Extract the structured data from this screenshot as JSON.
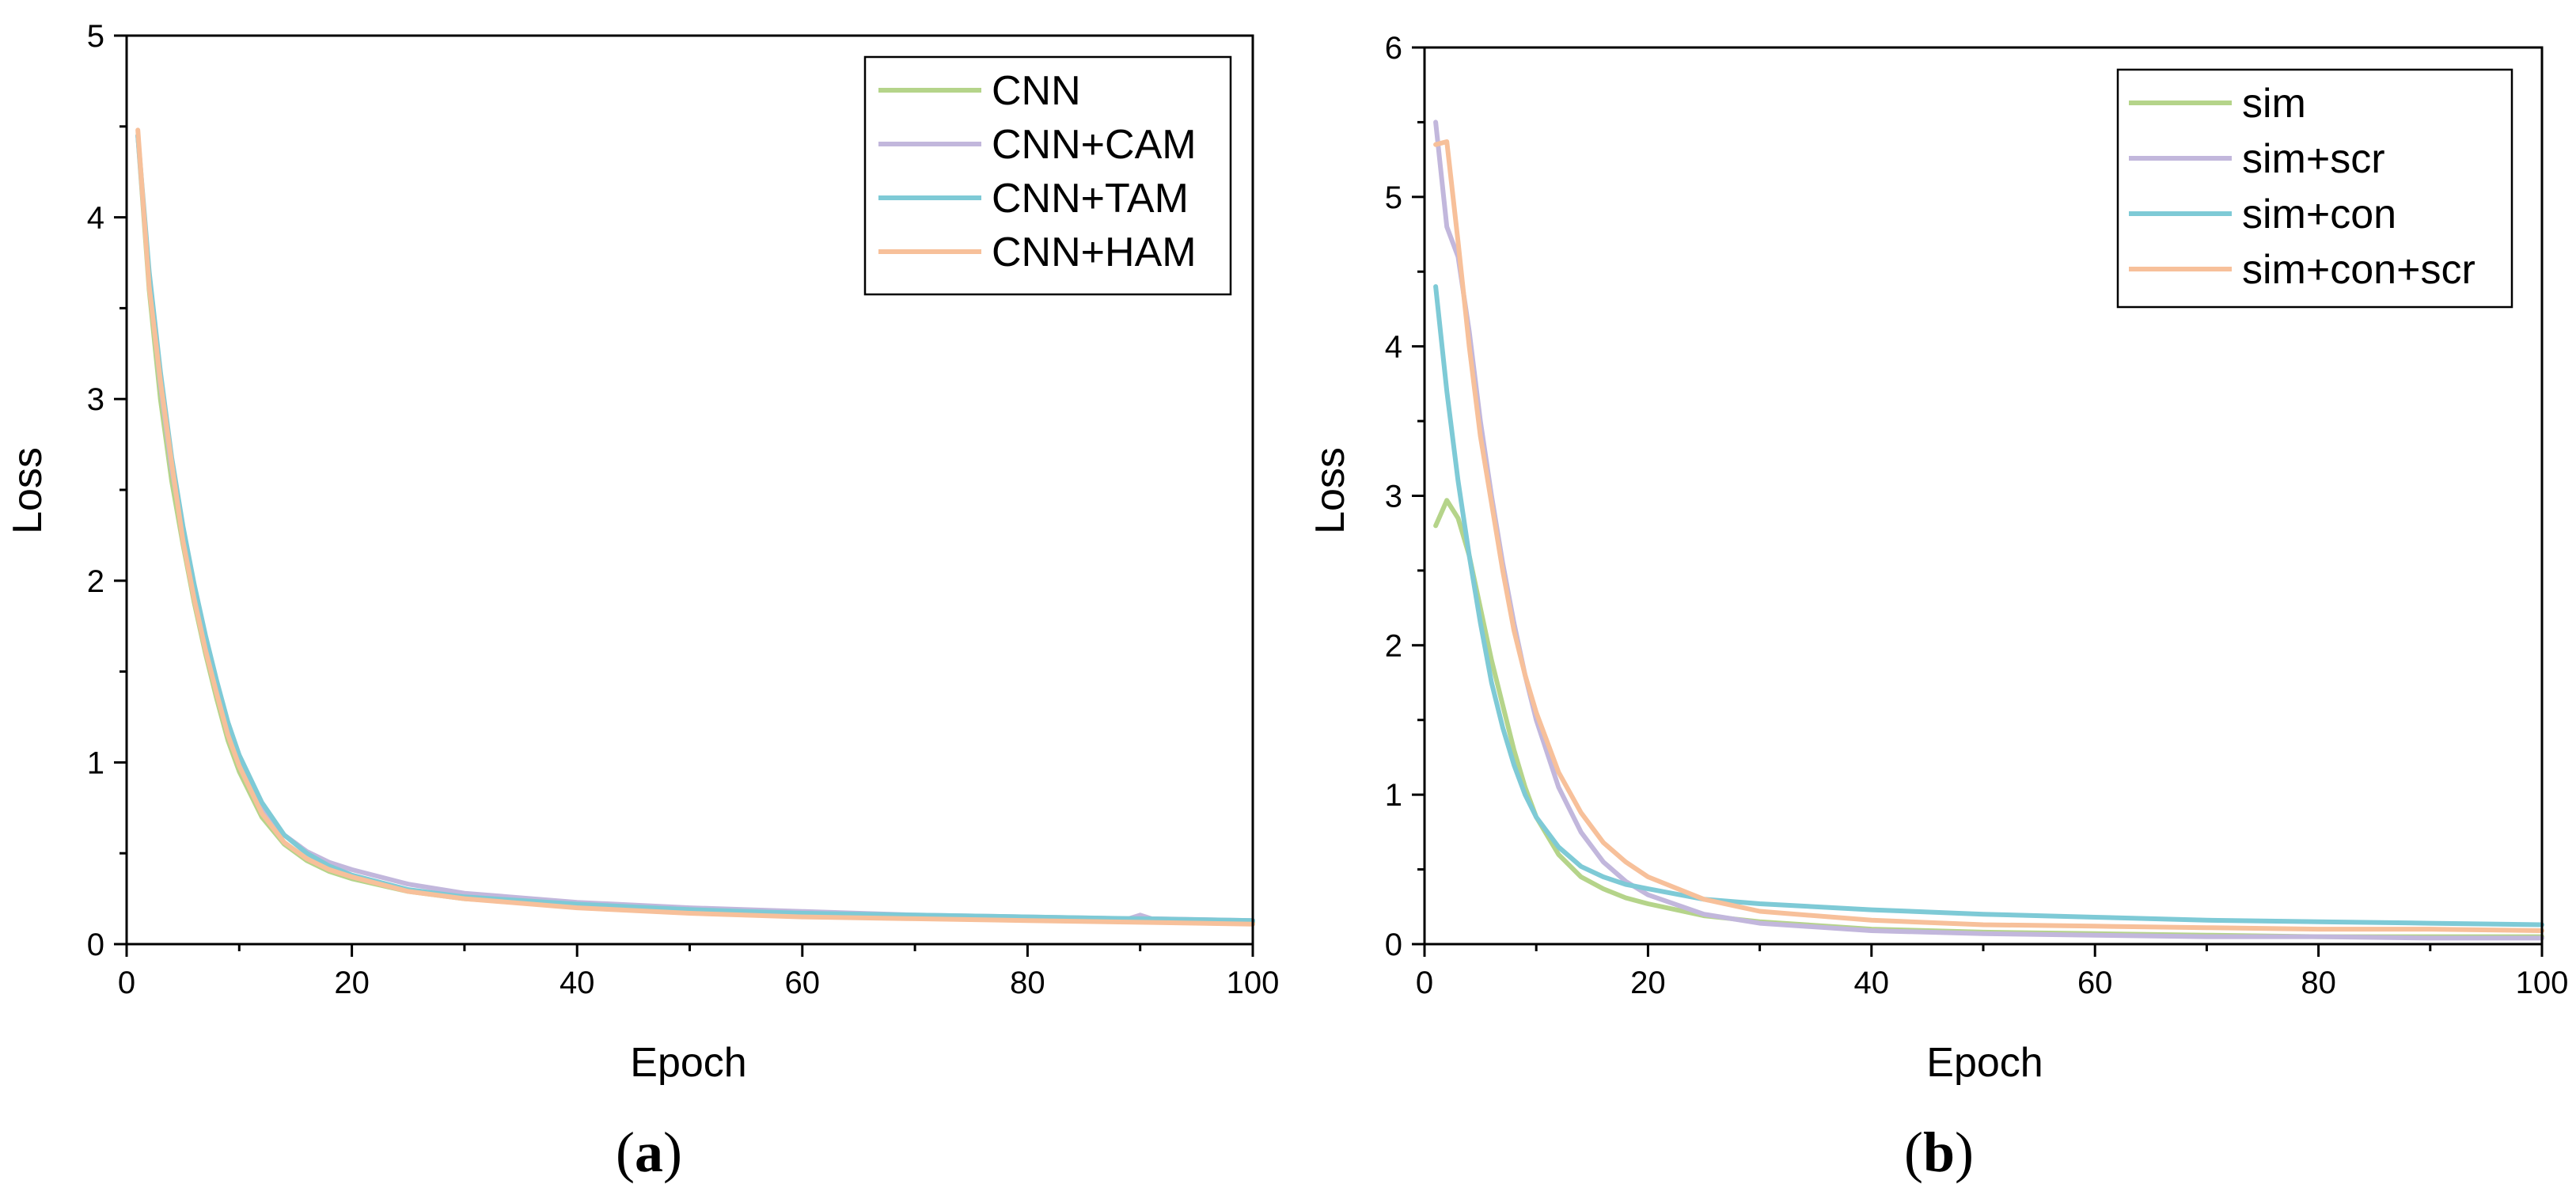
{
  "chart_data": [
    {
      "type": "line",
      "caption": "(a)",
      "caption_parts": [
        "(",
        "a",
        ")"
      ],
      "xlabel": "Epoch",
      "ylabel": "Loss",
      "xlim": [
        0,
        100
      ],
      "ylim": [
        0,
        5
      ],
      "xticks": [
        0,
        20,
        40,
        60,
        80,
        100
      ],
      "yticks": [
        0,
        1,
        2,
        3,
        4,
        5
      ],
      "grid": false,
      "legend_position": "top-right",
      "series": [
        {
          "name": "CNN",
          "color": "#b5d48a",
          "x": [
            1,
            2,
            3,
            4,
            5,
            6,
            7,
            8,
            9,
            10,
            12,
            14,
            16,
            18,
            20,
            25,
            30,
            40,
            50,
            60,
            70,
            80,
            90,
            100
          ],
          "y": [
            4.45,
            3.6,
            3.0,
            2.55,
            2.2,
            1.88,
            1.6,
            1.35,
            1.12,
            0.95,
            0.7,
            0.55,
            0.46,
            0.4,
            0.36,
            0.29,
            0.25,
            0.21,
            0.18,
            0.16,
            0.15,
            0.14,
            0.13,
            0.12
          ]
        },
        {
          "name": "CNN+CAM",
          "color": "#c2b7dc",
          "x": [
            1,
            2,
            3,
            4,
            5,
            6,
            7,
            8,
            9,
            10,
            12,
            14,
            16,
            18,
            20,
            25,
            30,
            40,
            50,
            60,
            70,
            80,
            89,
            90,
            91,
            100
          ],
          "y": [
            4.45,
            3.65,
            3.08,
            2.62,
            2.26,
            1.95,
            1.68,
            1.42,
            1.2,
            1.02,
            0.76,
            0.6,
            0.51,
            0.45,
            0.41,
            0.33,
            0.28,
            0.23,
            0.2,
            0.18,
            0.16,
            0.15,
            0.14,
            0.16,
            0.14,
            0.13
          ]
        },
        {
          "name": "CNN+TAM",
          "color": "#7ecad6",
          "x": [
            1,
            2,
            3,
            4,
            5,
            6,
            7,
            8,
            9,
            10,
            12,
            14,
            16,
            18,
            20,
            25,
            30,
            40,
            50,
            60,
            70,
            80,
            90,
            100
          ],
          "y": [
            4.45,
            3.7,
            3.15,
            2.68,
            2.3,
            1.98,
            1.7,
            1.45,
            1.22,
            1.04,
            0.78,
            0.6,
            0.5,
            0.43,
            0.38,
            0.3,
            0.26,
            0.22,
            0.19,
            0.17,
            0.16,
            0.15,
            0.14,
            0.13
          ]
        },
        {
          "name": "CNN+HAM",
          "color": "#f7c09a",
          "x": [
            1,
            2,
            3,
            4,
            5,
            6,
            7,
            8,
            9,
            10,
            12,
            14,
            16,
            18,
            20,
            25,
            30,
            40,
            50,
            60,
            70,
            80,
            90,
            100
          ],
          "y": [
            4.48,
            3.62,
            3.1,
            2.65,
            2.22,
            1.9,
            1.62,
            1.38,
            1.15,
            0.98,
            0.72,
            0.56,
            0.47,
            0.41,
            0.37,
            0.29,
            0.25,
            0.2,
            0.17,
            0.15,
            0.14,
            0.13,
            0.12,
            0.11
          ]
        }
      ]
    },
    {
      "type": "line",
      "caption": "(b)",
      "caption_parts": [
        "(",
        "b",
        ")"
      ],
      "xlabel": "Epoch",
      "ylabel": "Loss",
      "xlim": [
        0,
        100
      ],
      "ylim": [
        0,
        6
      ],
      "xticks": [
        0,
        20,
        40,
        60,
        80,
        100
      ],
      "yticks": [
        0,
        1,
        2,
        3,
        4,
        5,
        6
      ],
      "grid": false,
      "legend_position": "top-right",
      "series": [
        {
          "name": "sim",
          "color": "#b5d48a",
          "x": [
            1,
            2,
            3,
            4,
            5,
            6,
            7,
            8,
            9,
            10,
            12,
            14,
            16,
            18,
            20,
            25,
            30,
            40,
            50,
            60,
            70,
            80,
            90,
            100
          ],
          "y": [
            2.8,
            2.97,
            2.85,
            2.6,
            2.25,
            1.9,
            1.6,
            1.3,
            1.05,
            0.85,
            0.6,
            0.45,
            0.37,
            0.31,
            0.27,
            0.19,
            0.15,
            0.1,
            0.08,
            0.07,
            0.06,
            0.05,
            0.05,
            0.05
          ]
        },
        {
          "name": "sim+scr",
          "color": "#c2b7dc",
          "x": [
            1,
            2,
            3,
            4,
            5,
            6,
            7,
            8,
            9,
            10,
            12,
            14,
            16,
            18,
            20,
            25,
            30,
            40,
            50,
            60,
            70,
            80,
            90,
            100
          ],
          "y": [
            5.5,
            4.8,
            4.6,
            4.1,
            3.5,
            3.0,
            2.55,
            2.15,
            1.8,
            1.5,
            1.05,
            0.75,
            0.55,
            0.42,
            0.33,
            0.2,
            0.14,
            0.09,
            0.07,
            0.06,
            0.05,
            0.05,
            0.04,
            0.04
          ]
        },
        {
          "name": "sim+con",
          "color": "#7ecad6",
          "x": [
            1,
            2,
            3,
            4,
            5,
            6,
            7,
            8,
            9,
            10,
            12,
            14,
            16,
            18,
            20,
            25,
            30,
            40,
            50,
            60,
            70,
            80,
            90,
            100
          ],
          "y": [
            4.4,
            3.7,
            3.1,
            2.6,
            2.15,
            1.75,
            1.45,
            1.2,
            1.0,
            0.85,
            0.65,
            0.52,
            0.45,
            0.4,
            0.37,
            0.3,
            0.27,
            0.23,
            0.2,
            0.18,
            0.16,
            0.15,
            0.14,
            0.13
          ]
        },
        {
          "name": "sim+con+scr",
          "color": "#f7c09a",
          "x": [
            1,
            2,
            3,
            4,
            5,
            6,
            7,
            8,
            9,
            10,
            12,
            14,
            16,
            18,
            20,
            25,
            30,
            40,
            50,
            60,
            70,
            80,
            90,
            100
          ],
          "y": [
            5.35,
            5.37,
            4.7,
            4.0,
            3.4,
            2.95,
            2.5,
            2.1,
            1.8,
            1.55,
            1.15,
            0.88,
            0.68,
            0.55,
            0.45,
            0.3,
            0.22,
            0.16,
            0.13,
            0.12,
            0.11,
            0.1,
            0.1,
            0.09
          ]
        }
      ]
    }
  ]
}
